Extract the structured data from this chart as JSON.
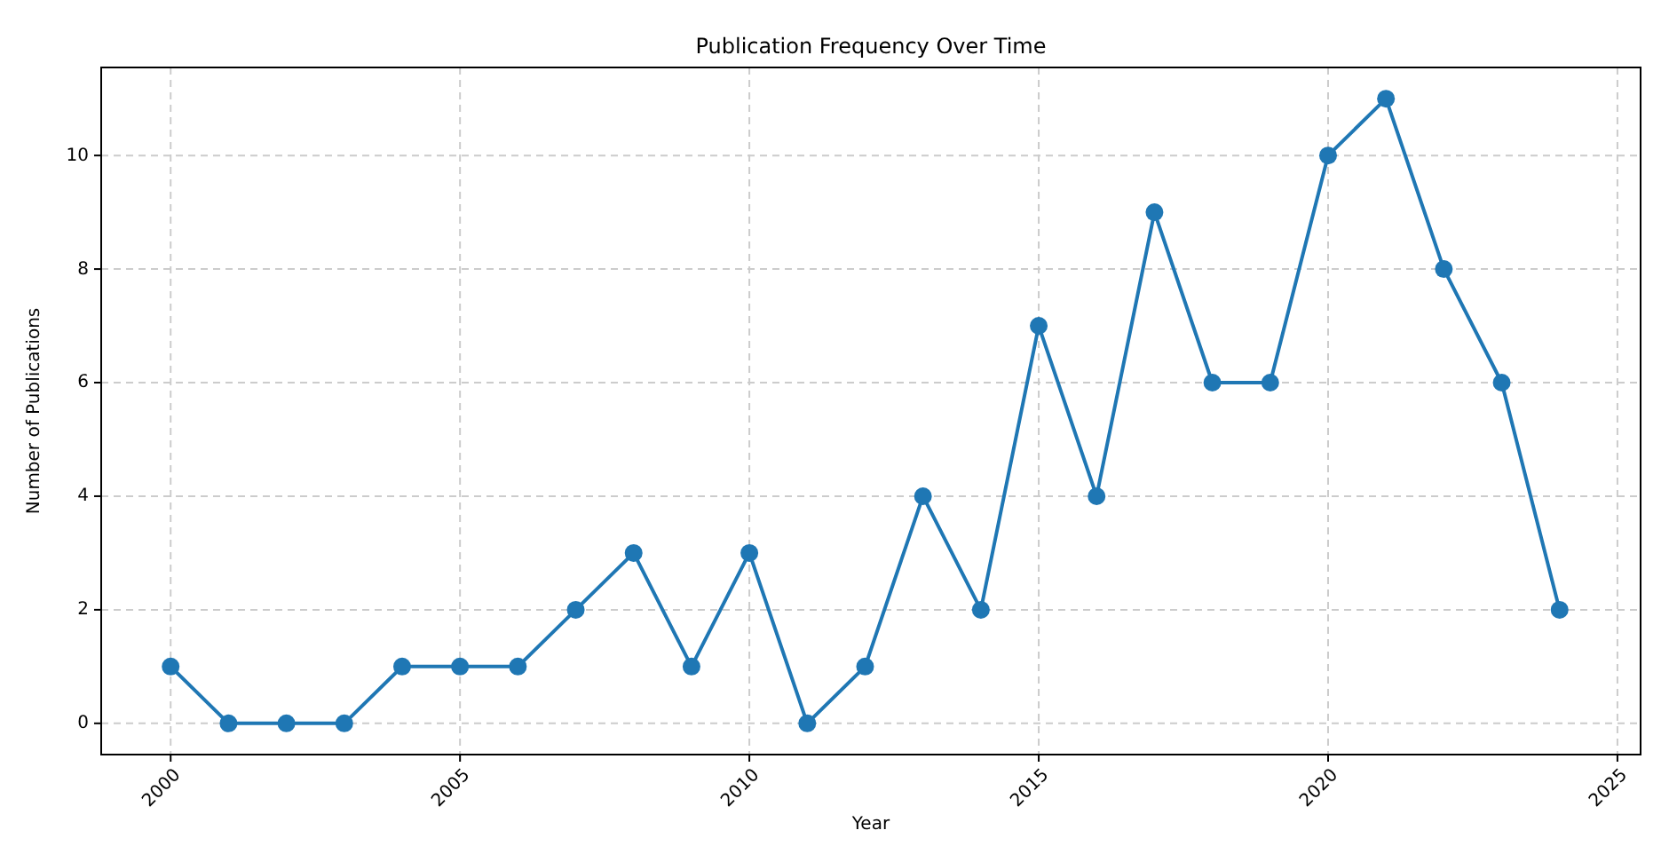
{
  "chart_data": {
    "type": "line",
    "title": "Publication Frequency Over Time",
    "xlabel": "Year",
    "ylabel": "Number of Publications",
    "x": [
      2000,
      2001,
      2002,
      2003,
      2004,
      2005,
      2006,
      2007,
      2008,
      2009,
      2010,
      2011,
      2012,
      2013,
      2014,
      2015,
      2016,
      2017,
      2018,
      2019,
      2020,
      2021,
      2022,
      2023,
      2024
    ],
    "series": [
      {
        "color": "#1f77b4",
        "values": [
          1,
          0,
          0,
          0,
          1,
          1,
          1,
          2,
          3,
          1,
          3,
          0,
          1,
          4,
          2,
          7,
          4,
          9,
          6,
          6,
          10,
          11,
          8,
          6,
          2
        ]
      }
    ],
    "xlim": [
      1998.8,
      2025.4
    ],
    "xticks": [
      2000,
      2005,
      2010,
      2015,
      2020,
      2025
    ],
    "ylim": [
      -0.55,
      11.55
    ],
    "yticks": [
      0,
      2,
      4,
      6,
      8,
      10
    ],
    "grid": true,
    "marker": "circle",
    "line_style": "solid"
  }
}
